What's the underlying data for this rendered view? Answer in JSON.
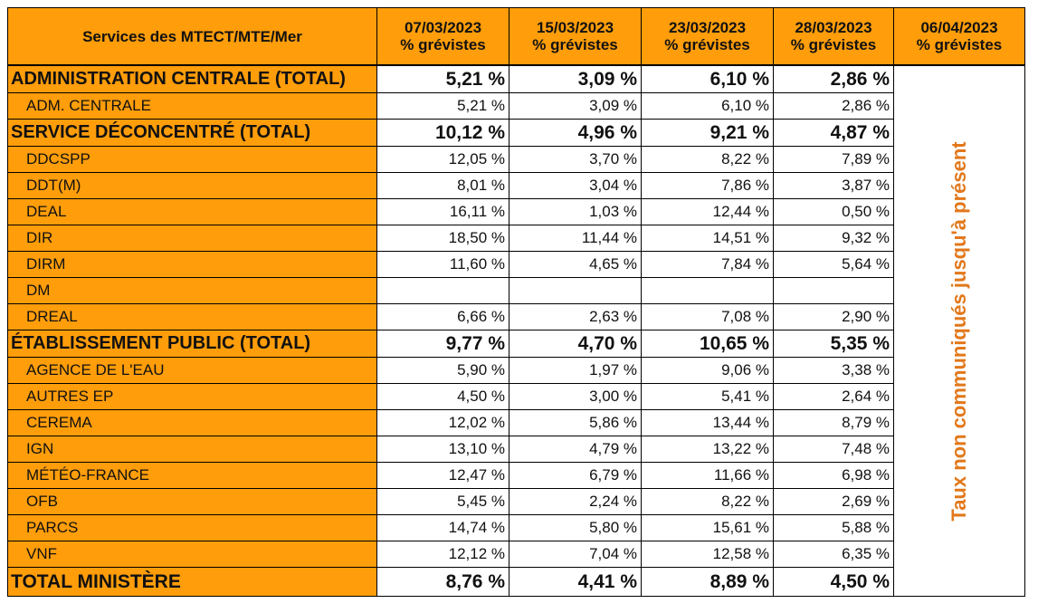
{
  "header": {
    "service_label": "Services des MTECT/MTE/Mer",
    "columns": [
      {
        "date": "07/03/2023",
        "sub": "% grévistes"
      },
      {
        "date": "15/03/2023",
        "sub": "% grévistes"
      },
      {
        "date": "23/03/2023",
        "sub": "% grévistes"
      },
      {
        "date": "28/03/2023",
        "sub": "% grévistes"
      },
      {
        "date": "06/04/2023",
        "sub": "% grévistes"
      }
    ]
  },
  "note": "Taux non communiqués jusqu'à présent",
  "rows": [
    {
      "kind": "tot",
      "label": "ADMINISTRATION CENTRALE (TOTAL)",
      "values": [
        "5,21 %",
        "3,09 %",
        "6,10 %",
        "2,86 %"
      ]
    },
    {
      "kind": "sub",
      "label": "ADM. CENTRALE",
      "values": [
        "5,21 %",
        "3,09 %",
        "6,10 %",
        "2,86 %"
      ]
    },
    {
      "kind": "tot",
      "label": "SERVICE DÉCONCENTRÉ (TOTAL)",
      "values": [
        "10,12 %",
        "4,96 %",
        "9,21 %",
        "4,87 %"
      ]
    },
    {
      "kind": "sub",
      "label": "DDCSPP",
      "values": [
        "12,05 %",
        "3,70 %",
        "8,22 %",
        "7,89 %"
      ]
    },
    {
      "kind": "sub",
      "label": "DDT(M)",
      "values": [
        "8,01 %",
        "3,04 %",
        "7,86 %",
        "3,87 %"
      ]
    },
    {
      "kind": "sub",
      "label": "DEAL",
      "values": [
        "16,11 %",
        "1,03 %",
        "12,44 %",
        "0,50 %"
      ]
    },
    {
      "kind": "sub",
      "label": "DIR",
      "values": [
        "18,50 %",
        "11,44 %",
        "14,51 %",
        "9,32 %"
      ]
    },
    {
      "kind": "sub",
      "label": "DIRM",
      "values": [
        "11,60 %",
        "4,65 %",
        "7,84 %",
        "5,64 %"
      ]
    },
    {
      "kind": "sub",
      "label": "DM",
      "values": [
        "",
        "",
        "",
        ""
      ]
    },
    {
      "kind": "sub",
      "label": "DREAL",
      "values": [
        "6,66 %",
        "2,63 %",
        "7,08 %",
        "2,90 %"
      ]
    },
    {
      "kind": "tot",
      "label": "ÉTABLISSEMENT PUBLIC (TOTAL)",
      "values": [
        "9,77 %",
        "4,70 %",
        "10,65 %",
        "5,35 %"
      ]
    },
    {
      "kind": "sub",
      "label": "AGENCE DE L'EAU",
      "values": [
        "5,90 %",
        "1,97 %",
        "9,06 %",
        "3,38 %"
      ]
    },
    {
      "kind": "sub",
      "label": "AUTRES EP",
      "values": [
        "4,50 %",
        "3,00 %",
        "5,41 %",
        "2,64 %"
      ]
    },
    {
      "kind": "sub",
      "label": "CEREMA",
      "values": [
        "12,02 %",
        "5,86 %",
        "13,44 %",
        "8,79 %"
      ]
    },
    {
      "kind": "sub",
      "label": "IGN",
      "values": [
        "13,10 %",
        "4,79 %",
        "13,22 %",
        "7,48 %"
      ]
    },
    {
      "kind": "sub",
      "label": "MÉTÉO-FRANCE",
      "values": [
        "12,47 %",
        "6,79 %",
        "11,66 %",
        "6,98 %"
      ]
    },
    {
      "kind": "sub",
      "label": "OFB",
      "values": [
        "5,45 %",
        "2,24 %",
        "8,22 %",
        "2,69 %"
      ]
    },
    {
      "kind": "sub",
      "label": "PARCS",
      "values": [
        "14,74 %",
        "5,80 %",
        "15,61 %",
        "5,88 %"
      ]
    },
    {
      "kind": "sub",
      "label": "VNF",
      "values": [
        "12,12 %",
        "7,04 %",
        "12,58 %",
        "6,35 %"
      ]
    },
    {
      "kind": "grand",
      "label": "TOTAL MINISTÈRE",
      "values": [
        "8,76 %",
        "4,41 %",
        "8,89 %",
        "4,50 %"
      ]
    }
  ]
}
